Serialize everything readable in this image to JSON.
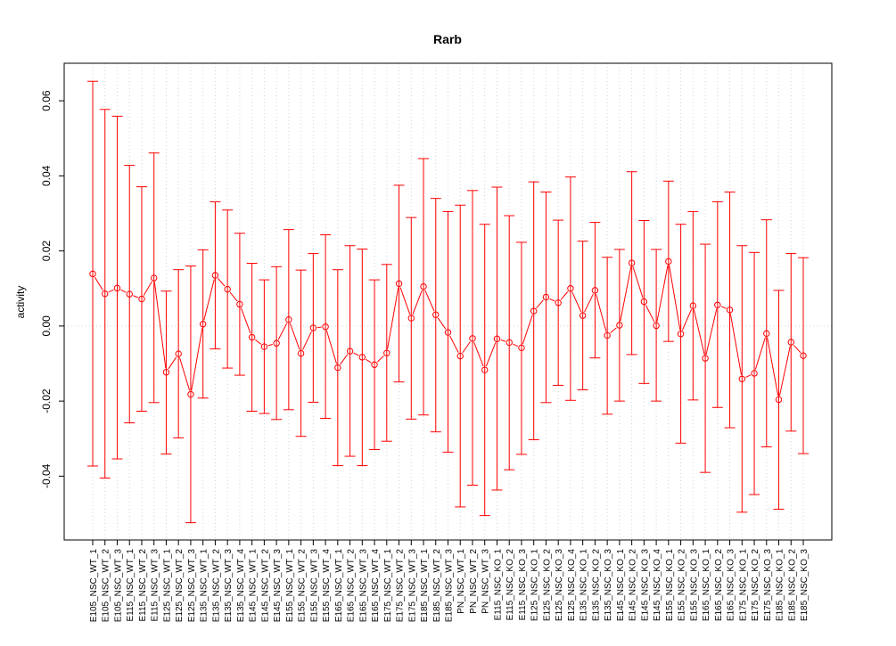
{
  "chart_data": {
    "type": "line",
    "title": "Rarb",
    "xlabel": "",
    "ylabel": "activity",
    "ylim": [
      -0.057,
      0.07
    ],
    "y_ticks": [
      -0.04,
      -0.02,
      0.0,
      0.02,
      0.04,
      0.06
    ],
    "y_tick_labels": [
      "-0.04",
      "-0.02",
      "0.00",
      "0.02",
      "0.04",
      "0.06"
    ],
    "grid": true,
    "error_bars": true,
    "colors": {
      "series": "#ff0000",
      "grid": "#d3d3d3",
      "axis": "#000000"
    },
    "categories": [
      "E105_NSC_WT_1",
      "E105_NSC_WT_2",
      "E105_NSC_WT_3",
      "E115_NSC_WT_1",
      "E115_NSC_WT_2",
      "E115_NSC_WT_3",
      "E125_NSC_WT_1",
      "E125_NSC_WT_2",
      "E125_NSC_WT_3",
      "E135_NSC_WT_1",
      "E135_NSC_WT_2",
      "E135_NSC_WT_3",
      "E135_NSC_WT_4",
      "E145_NSC_WT_1",
      "E145_NSC_WT_2",
      "E145_NSC_WT_3",
      "E155_NSC_WT_1",
      "E155_NSC_WT_2",
      "E155_NSC_WT_3",
      "E155_NSC_WT_4",
      "E165_NSC_WT_1",
      "E165_NSC_WT_2",
      "E165_NSC_WT_3",
      "E165_NSC_WT_4",
      "E175_NSC_WT_1",
      "E175_NSC_WT_2",
      "E175_NSC_WT_3",
      "E185_NSC_WT_1",
      "E185_NSC_WT_2",
      "E185_NSC_WT_3",
      "PN_NSC_WT_1",
      "PN_NSC_WT_2",
      "PN_NSC_WT_3",
      "E115_NSC_KO_1",
      "E115_NSC_KO_2",
      "E115_NSC_KO_3",
      "E125_NSC_KO_1",
      "E125_NSC_KO_2",
      "E125_NSC_KO_3",
      "E125_NSC_KO_4",
      "E135_NSC_KO_1",
      "E135_NSC_KO_2",
      "E135_NSC_KO_3",
      "E145_NSC_KO_1",
      "E145_NSC_KO_2",
      "E145_NSC_KO_3",
      "E145_NSC_KO_4",
      "E155_NSC_KO_1",
      "E155_NSC_KO_2",
      "E155_NSC_KO_3",
      "E165_NSC_KO_1",
      "E165_NSC_KO_2",
      "E165_NSC_KO_3",
      "E175_NSC_KO_1",
      "E175_NSC_KO_2",
      "E175_NSC_KO_3",
      "E185_NSC_KO_1",
      "E185_NSC_KO_2",
      "E185_NSC_KO_3"
    ],
    "values": [
      0.0139,
      0.0086,
      0.0101,
      0.0085,
      0.0072,
      0.0128,
      -0.0123,
      -0.0074,
      -0.0182,
      0.0005,
      0.0135,
      0.0098,
      0.0058,
      -0.003,
      -0.0055,
      -0.0046,
      0.0017,
      -0.0073,
      -0.0005,
      -0.0002,
      -0.0111,
      -0.0067,
      -0.0083,
      -0.0103,
      -0.0072,
      0.0113,
      0.0021,
      0.0105,
      0.003,
      -0.0017,
      -0.008,
      -0.0033,
      -0.0117,
      -0.0034,
      -0.0044,
      -0.0058,
      0.004,
      0.0077,
      0.0062,
      0.01,
      0.0028,
      0.0095,
      -0.0025,
      0.0002,
      0.0168,
      0.0065,
      0.0001,
      0.0172,
      -0.0021,
      0.0054,
      -0.0086,
      0.0056,
      0.0043,
      -0.0141,
      -0.0126,
      -0.002,
      -0.0196,
      -0.0043,
      -0.0079
    ],
    "upper": [
      0.0652,
      0.0577,
      0.0559,
      0.0428,
      0.0371,
      0.0461,
      0.0093,
      0.015,
      0.016,
      0.0203,
      0.0331,
      0.0309,
      0.0247,
      0.0167,
      0.0123,
      0.0158,
      0.0257,
      0.0149,
      0.0193,
      0.0243,
      0.015,
      0.0214,
      0.0205,
      0.0123,
      0.0164,
      0.0375,
      0.0289,
      0.0446,
      0.034,
      0.0305,
      0.0322,
      0.0361,
      0.0271,
      0.037,
      0.0294,
      0.0223,
      0.0384,
      0.0357,
      0.0282,
      0.0397,
      0.0226,
      0.0276,
      0.0183,
      0.0204,
      0.0411,
      0.0281,
      0.0204,
      0.0386,
      0.0271,
      0.0305,
      0.0218,
      0.0331,
      0.0357,
      0.0214,
      0.0196,
      0.0283,
      0.0095,
      0.0193,
      0.0182
    ],
    "lower": [
      -0.0373,
      -0.0405,
      -0.0354,
      -0.0258,
      -0.0227,
      -0.0204,
      -0.0341,
      -0.0298,
      -0.0524,
      -0.0192,
      -0.0061,
      -0.0112,
      -0.0131,
      -0.0227,
      -0.0233,
      -0.0249,
      -0.0223,
      -0.0294,
      -0.0203,
      -0.0246,
      -0.0372,
      -0.0347,
      -0.0372,
      -0.0329,
      -0.0307,
      -0.0149,
      -0.0248,
      -0.0237,
      -0.0282,
      -0.0336,
      -0.0482,
      -0.0424,
      -0.0505,
      -0.0437,
      -0.0383,
      -0.0342,
      -0.0303,
      -0.0204,
      -0.0158,
      -0.0198,
      -0.017,
      -0.0085,
      -0.0235,
      -0.02,
      -0.0076,
      -0.0153,
      -0.02,
      -0.0041,
      -0.0312,
      -0.0197,
      -0.039,
      -0.0217,
      -0.0271,
      -0.0496,
      -0.0449,
      -0.0322,
      -0.0488,
      -0.028,
      -0.034
    ]
  }
}
